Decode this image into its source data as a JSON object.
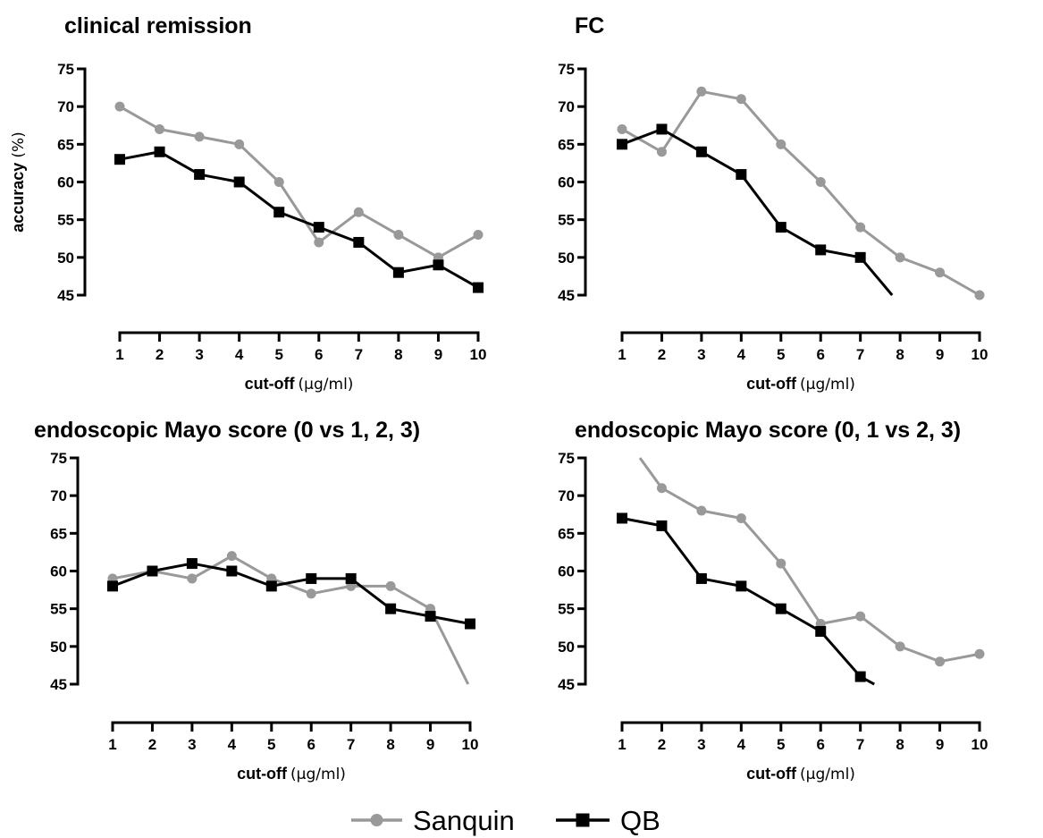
{
  "legend": {
    "items": [
      {
        "label": "Sanquin",
        "color": "#999999",
        "marker": "circle"
      },
      {
        "label": "QB",
        "color": "#000000",
        "marker": "square"
      }
    ]
  },
  "chart_data": [
    {
      "type": "line",
      "title": "clinical remission",
      "ylabel": "accuracy",
      "ylabel_unit": "(%)",
      "xlabel": "cut-off",
      "xlabel_unit": "(µg/ml)",
      "ylim": [
        45,
        75
      ],
      "xlim": [
        1,
        10
      ],
      "yticks": [
        45,
        50,
        55,
        60,
        65,
        70,
        75
      ],
      "xticks": [
        1,
        2,
        3,
        4,
        5,
        6,
        7,
        8,
        9,
        10
      ],
      "series": [
        {
          "name": "Sanquin",
          "color": "#999999",
          "marker": "circle",
          "x": [
            1,
            2,
            3,
            4,
            5,
            6,
            7,
            8,
            9,
            10
          ],
          "y": [
            70,
            67,
            66,
            65,
            60,
            52,
            56,
            53,
            50,
            53
          ]
        },
        {
          "name": "QB",
          "color": "#000000",
          "marker": "square",
          "x": [
            1,
            2,
            3,
            4,
            5,
            6,
            7,
            8,
            9,
            10
          ],
          "y": [
            63,
            64,
            61,
            60,
            56,
            54,
            52,
            48,
            49,
            46
          ]
        }
      ]
    },
    {
      "type": "line",
      "title": "FC",
      "ylabel": "",
      "ylabel_unit": "",
      "xlabel": "cut-off",
      "xlabel_unit": "(µg/ml)",
      "ylim": [
        45,
        75
      ],
      "xlim": [
        1,
        10
      ],
      "yticks": [
        45,
        50,
        55,
        60,
        65,
        70,
        75
      ],
      "xticks": [
        1,
        2,
        3,
        4,
        5,
        6,
        7,
        8,
        9,
        10
      ],
      "series": [
        {
          "name": "Sanquin",
          "color": "#999999",
          "marker": "circle",
          "x": [
            1,
            2,
            3,
            4,
            5,
            6,
            7,
            8,
            9,
            10
          ],
          "y": [
            67,
            64,
            72,
            71,
            65,
            60,
            54,
            50,
            48,
            45
          ]
        },
        {
          "name": "QB",
          "color": "#000000",
          "marker": "square",
          "x": [
            1,
            2,
            3,
            4,
            5,
            6,
            7
          ],
          "y": [
            65,
            67,
            64,
            61,
            54,
            51,
            50
          ],
          "trailing_line_to": {
            "x": 7.8,
            "y": 45
          }
        }
      ]
    },
    {
      "type": "line",
      "title": "endoscopic Mayo score (0 vs 1, 2, 3)",
      "ylabel": "",
      "ylabel_unit": "",
      "xlabel": "cut-off",
      "xlabel_unit": "(µg/ml)",
      "ylim": [
        45,
        75
      ],
      "xlim": [
        1,
        10
      ],
      "yticks": [
        45,
        50,
        55,
        60,
        65,
        70,
        75
      ],
      "xticks": [
        1,
        2,
        3,
        4,
        5,
        6,
        7,
        8,
        9,
        10
      ],
      "series": [
        {
          "name": "Sanquin",
          "color": "#999999",
          "marker": "circle",
          "x": [
            1,
            2,
            3,
            4,
            5,
            6,
            7,
            8,
            9
          ],
          "y": [
            59,
            60,
            59,
            62,
            59,
            57,
            58,
            58,
            55
          ],
          "trailing_line_to": {
            "x": 9.95,
            "y": 45
          }
        },
        {
          "name": "QB",
          "color": "#000000",
          "marker": "square",
          "x": [
            1,
            2,
            3,
            4,
            5,
            6,
            7,
            8,
            9,
            10
          ],
          "y": [
            58,
            60,
            61,
            60,
            58,
            59,
            59,
            55,
            54,
            53
          ]
        }
      ]
    },
    {
      "type": "line",
      "title": "endoscopic Mayo score (0, 1 vs 2, 3)",
      "ylabel": "",
      "ylabel_unit": "",
      "xlabel": "cut-off",
      "xlabel_unit": "(µg/ml)",
      "ylim": [
        45,
        75
      ],
      "xlim": [
        1,
        10
      ],
      "yticks": [
        45,
        50,
        55,
        60,
        65,
        70,
        75
      ],
      "xticks": [
        1,
        2,
        3,
        4,
        5,
        6,
        7,
        8,
        9,
        10
      ],
      "series": [
        {
          "name": "Sanquin",
          "color": "#999999",
          "marker": "circle",
          "x": [
            2,
            3,
            4,
            5,
            6,
            7,
            8,
            9,
            10
          ],
          "y": [
            71,
            68,
            67,
            61,
            53,
            54,
            50,
            48,
            49
          ],
          "leading_line_from": {
            "x": 1.45,
            "y": 75
          }
        },
        {
          "name": "QB",
          "color": "#000000",
          "marker": "square",
          "x": [
            1,
            2,
            3,
            4,
            5,
            6,
            7
          ],
          "y": [
            67,
            66,
            59,
            58,
            55,
            52,
            46
          ],
          "trailing_line_to": {
            "x": 7.35,
            "y": 45
          }
        }
      ]
    }
  ]
}
